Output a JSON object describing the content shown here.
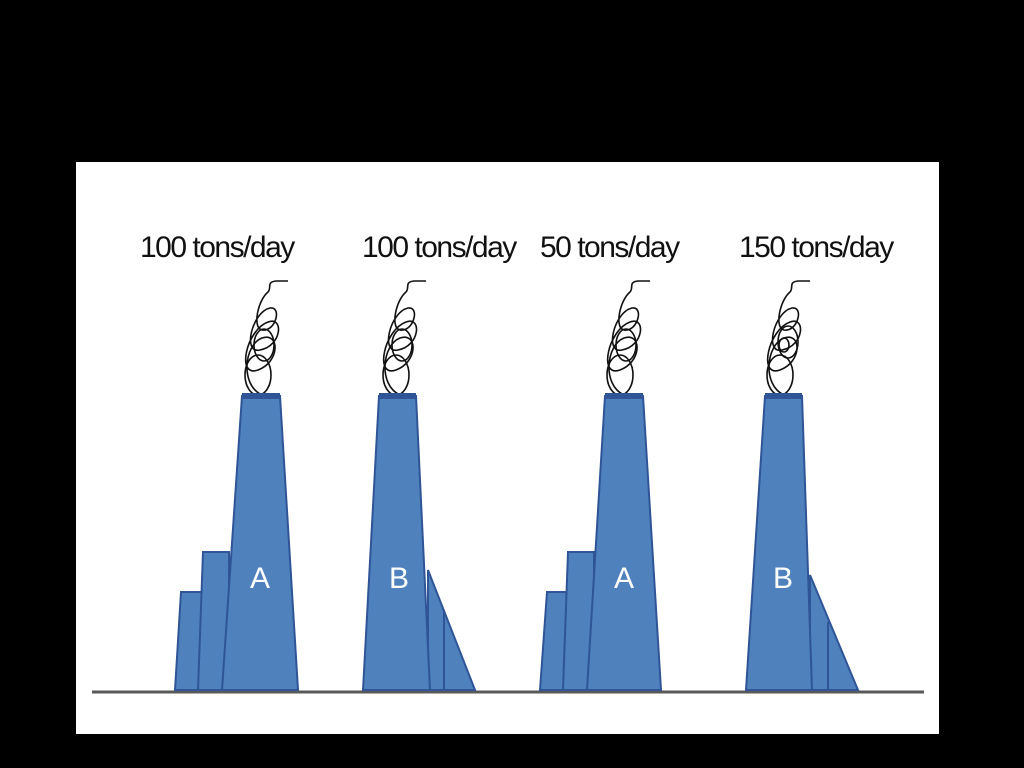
{
  "factories": [
    {
      "rate_label": "100 tons/day",
      "letter": "A",
      "type": "A"
    },
    {
      "rate_label": "100 tons/day",
      "letter": "B",
      "type": "B"
    },
    {
      "rate_label": "50 tons/day",
      "letter": "A",
      "type": "A"
    },
    {
      "rate_label": "150 tons/day",
      "letter": "B",
      "type": "B"
    }
  ],
  "colors": {
    "stack_fill": "#4f81bd",
    "stack_edge": "#2f5597",
    "ground": "#595959",
    "background": "#000000",
    "panel": "#ffffff"
  }
}
